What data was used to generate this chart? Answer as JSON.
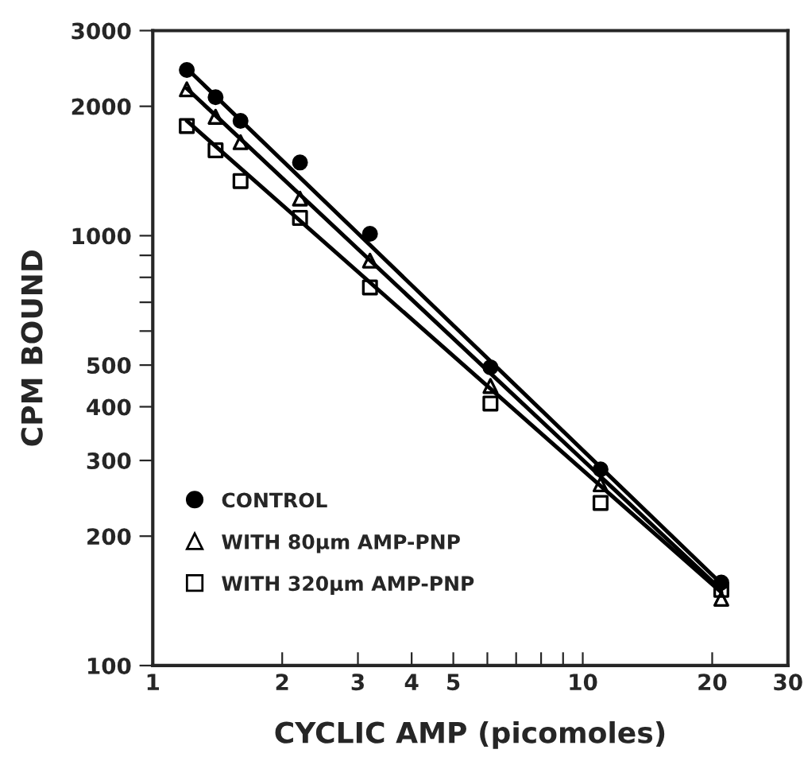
{
  "chart_data": {
    "type": "scatter",
    "xlabel": "CYCLIC AMP (picomoles)",
    "ylabel": "CPM BOUND",
    "log": "xy",
    "xlim": [
      1,
      30
    ],
    "ylim": [
      100,
      3000
    ],
    "xticks": [
      1,
      2,
      3,
      4,
      5,
      {
        "value": 6,
        "label": null
      },
      {
        "value": 7,
        "label": null
      },
      {
        "value": 8,
        "label": null
      },
      {
        "value": 9,
        "label": null
      },
      10,
      20,
      30
    ],
    "yticks": [
      100,
      200,
      300,
      400,
      500,
      {
        "value": 600,
        "label": null
      },
      {
        "value": 700,
        "label": null
      },
      {
        "value": 800,
        "label": null
      },
      {
        "value": 900,
        "label": null
      },
      1000,
      2000,
      3000
    ],
    "legend": "bottom left",
    "grid": false,
    "series": [
      {
        "name": "CONTROL",
        "marker": "circle",
        "color": "#000000",
        "x": [
          1.2,
          1.4,
          1.6,
          2.2,
          3.2,
          6.1,
          11,
          21
        ],
        "values": [
          2430,
          2100,
          1850,
          1480,
          1010,
          494,
          286,
          156
        ]
      },
      {
        "name": "WITH 80μm AMP-PNP",
        "marker": "triangle",
        "color": "#000000",
        "x": [
          1.2,
          1.4,
          1.6,
          2.2,
          3.2,
          6.1,
          11,
          21
        ],
        "values": [
          2190,
          1890,
          1650,
          1220,
          875,
          447,
          264,
          143
        ]
      },
      {
        "name": "WITH 320μm AMP-PNP",
        "marker": "square",
        "color": "#000000",
        "x": [
          1.2,
          1.4,
          1.6,
          2.2,
          3.2,
          6.1,
          11,
          21
        ],
        "values": [
          1800,
          1580,
          1340,
          1100,
          758,
          407,
          239,
          150
        ]
      },
      {
        "type": "line",
        "line_style": "solid",
        "color": "#000000",
        "x": [
          1.2,
          21
        ],
        "values": [
          2450,
          155
        ]
      },
      {
        "type": "line",
        "line_style": "solid",
        "color": "#000000",
        "x": [
          1.2,
          21
        ],
        "values": [
          2200,
          150
        ]
      },
      {
        "type": "line",
        "line_style": "solid",
        "color": "#000000",
        "x": [
          1.2,
          21
        ],
        "values": [
          1850,
          148
        ]
      }
    ]
  }
}
